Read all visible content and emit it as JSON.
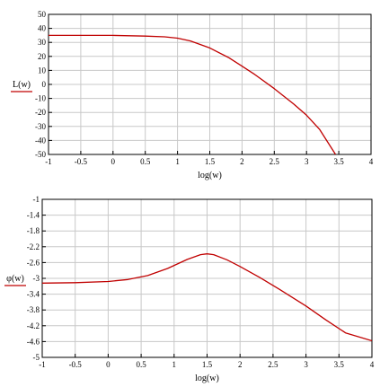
{
  "chart_data": [
    {
      "type": "line",
      "xlabel": "log(w)",
      "ylabel": "L(w)",
      "xlim": [
        -1,
        4
      ],
      "ylim": [
        -50,
        50
      ],
      "xticks": [
        -1,
        -0.5,
        0,
        0.5,
        1,
        1.5,
        2,
        2.5,
        3,
        3.5,
        4
      ],
      "xtick_labels": [
        "-1",
        "-0.5",
        "0",
        "0.5",
        "1",
        "1.5",
        "2",
        "2.5",
        "3",
        "3.5",
        "4"
      ],
      "yticks": [
        -50,
        -40,
        -30,
        -20,
        -10,
        0,
        10,
        20,
        30,
        40,
        50
      ],
      "ytick_labels": [
        "-50",
        "-40",
        "-30",
        "-20",
        "-10",
        "0",
        "10",
        "20",
        "30",
        "40",
        "50"
      ],
      "grid": true,
      "line_color": "#c00000",
      "series": [
        {
          "x": [
            -1,
            -0.5,
            0,
            0.5,
            0.8,
            1.0,
            1.2,
            1.5,
            1.8,
            2.0,
            2.2,
            2.5,
            2.8,
            3.0,
            3.2,
            3.45
          ],
          "y": [
            35,
            35,
            35,
            34.5,
            34,
            33,
            31,
            26,
            19,
            13,
            7,
            -3,
            -14,
            -22,
            -32,
            -50
          ]
        }
      ]
    },
    {
      "type": "line",
      "xlabel": "log(w)",
      "ylabel": "φ(w)",
      "xlim": [
        -1,
        4
      ],
      "ylim": [
        -5,
        -1
      ],
      "xticks": [
        -1,
        -0.5,
        0,
        0.5,
        1,
        1.5,
        2,
        2.5,
        3,
        3.5,
        4
      ],
      "xtick_labels": [
        "-1",
        "-0.5",
        "0",
        "0.5",
        "1",
        "1.5",
        "2",
        "2.5",
        "3",
        "3.5",
        "4"
      ],
      "yticks": [
        -5,
        -4.6,
        -4.2,
        -3.8,
        -3.4,
        -3,
        -2.6,
        -2.2,
        -1.8,
        -1.4,
        -1
      ],
      "ytick_labels": [
        "-5",
        "-4.6",
        "-4.2",
        "-3.8",
        "-3.4",
        "-3",
        "-2.6",
        "-2.2",
        "-1.8",
        "-1.4",
        "-1"
      ],
      "grid": true,
      "line_color": "#c00000",
      "series": [
        {
          "x": [
            -1,
            -0.5,
            0,
            0.3,
            0.6,
            0.9,
            1.2,
            1.4,
            1.5,
            1.6,
            1.8,
            2.0,
            2.3,
            2.6,
            3.0,
            3.3,
            3.6,
            4.0
          ],
          "y": [
            -3.12,
            -3.11,
            -3.08,
            -3.03,
            -2.93,
            -2.75,
            -2.52,
            -2.4,
            -2.38,
            -2.4,
            -2.53,
            -2.7,
            -2.98,
            -3.28,
            -3.7,
            -4.05,
            -4.38,
            -4.58
          ]
        }
      ]
    }
  ]
}
